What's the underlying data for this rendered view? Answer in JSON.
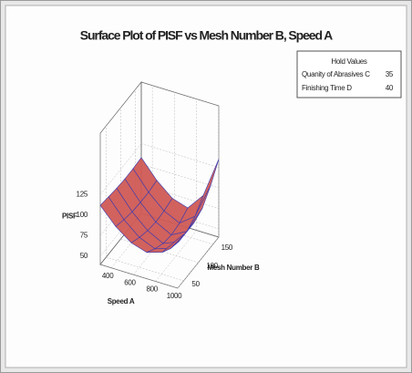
{
  "chart_data": {
    "type": "surface",
    "title": "Surface Plot of PISF vs Mesh Number B, Speed A",
    "x_label": "Speed A",
    "y_label": "Mesh Number B",
    "z_label": "PISF",
    "x": [
      300,
      440,
      580,
      720,
      860,
      1000
    ],
    "y": [
      30,
      58,
      86,
      114,
      142,
      170
    ],
    "z": [
      [
        112,
        110,
        108,
        107,
        107,
        108
      ],
      [
        92,
        88,
        85,
        84,
        84,
        86
      ],
      [
        78,
        72,
        68,
        66,
        67,
        70
      ],
      [
        72,
        64,
        58,
        56,
        58,
        64
      ],
      [
        78,
        70,
        66,
        66,
        72,
        85
      ],
      [
        100,
        95,
        95,
        100,
        115,
        135
      ]
    ],
    "xlim": [
      300,
      1000
    ],
    "ylim": [
      30,
      170
    ],
    "zlim": [
      40,
      200
    ],
    "xticks": [
      400,
      600,
      800,
      1000
    ],
    "yticks": [
      50,
      100,
      150
    ],
    "zticks": [
      50,
      75,
      100,
      125
    ],
    "grid": true,
    "surface_color": "#cf5a55",
    "mesh_color": "#3b3bb0",
    "hold_values": {
      "title": "Hold Values",
      "rows": [
        {
          "label": "Quanity of Abrasives C",
          "value": 35
        },
        {
          "label": "Finishing Time D",
          "value": 40
        }
      ]
    }
  }
}
